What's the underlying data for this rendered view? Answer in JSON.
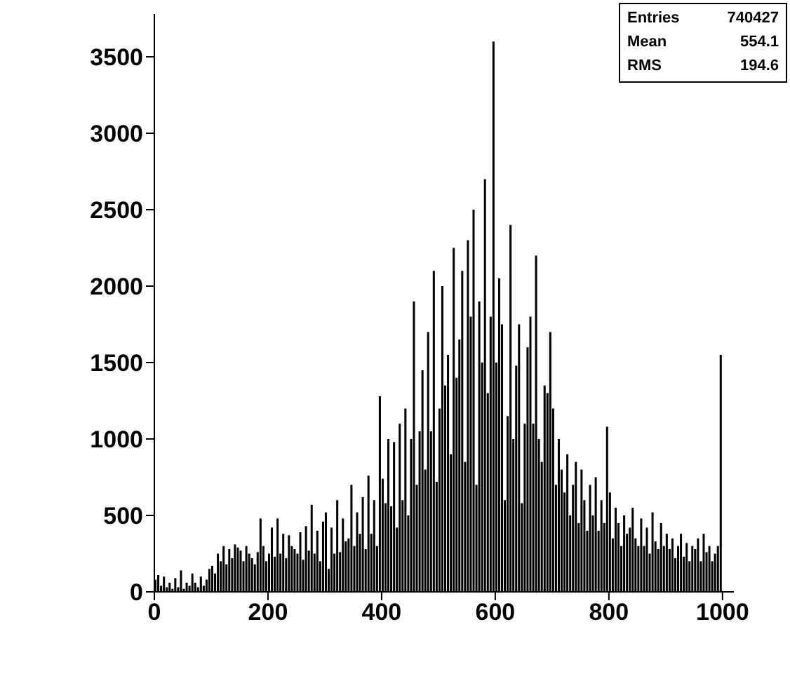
{
  "chart_data": {
    "type": "histogram",
    "color": "#000000",
    "bins": [
      0,
      5,
      10,
      15,
      20,
      25,
      30,
      35,
      40,
      45,
      50,
      55,
      60,
      65,
      70,
      75,
      80,
      85,
      90,
      95,
      100,
      105,
      110,
      115,
      120,
      125,
      130,
      135,
      140,
      145,
      150,
      155,
      160,
      165,
      170,
      175,
      180,
      185,
      190,
      195,
      200,
      205,
      210,
      215,
      220,
      225,
      230,
      235,
      240,
      245,
      250,
      255,
      260,
      265,
      270,
      275,
      280,
      285,
      290,
      295,
      300,
      305,
      310,
      315,
      320,
      325,
      330,
      335,
      340,
      345,
      350,
      355,
      360,
      365,
      370,
      375,
      380,
      385,
      390,
      395,
      400,
      405,
      410,
      415,
      420,
      425,
      430,
      435,
      440,
      445,
      450,
      455,
      460,
      465,
      470,
      475,
      480,
      485,
      490,
      495,
      500,
      505,
      510,
      515,
      520,
      525,
      530,
      535,
      540,
      545,
      550,
      555,
      560,
      565,
      570,
      575,
      580,
      585,
      590,
      595,
      600,
      605,
      610,
      615,
      620,
      625,
      630,
      635,
      640,
      645,
      650,
      655,
      660,
      665,
      670,
      675,
      680,
      685,
      690,
      695,
      700,
      705,
      710,
      715,
      720,
      725,
      730,
      735,
      740,
      745,
      750,
      755,
      760,
      765,
      770,
      775,
      780,
      785,
      790,
      795,
      800,
      805,
      810,
      815,
      820,
      825,
      830,
      835,
      840,
      845,
      850,
      855,
      860,
      865,
      870,
      875,
      880,
      885,
      890,
      895,
      900,
      905,
      910,
      915,
      920,
      925,
      930,
      935,
      940,
      945,
      950,
      955,
      960,
      965,
      970,
      975,
      980,
      985,
      990,
      995,
      1000
    ],
    "values": [
      80,
      110,
      40,
      100,
      30,
      60,
      20,
      90,
      30,
      140,
      20,
      60,
      40,
      120,
      60,
      30,
      100,
      40,
      80,
      150,
      170,
      120,
      250,
      200,
      300,
      180,
      280,
      220,
      310,
      290,
      270,
      200,
      300,
      250,
      220,
      180,
      260,
      480,
      300,
      200,
      250,
      420,
      230,
      480,
      250,
      380,
      220,
      370,
      300,
      280,
      250,
      390,
      210,
      430,
      270,
      570,
      250,
      400,
      200,
      460,
      520,
      150,
      420,
      250,
      600,
      260,
      480,
      330,
      350,
      700,
      300,
      520,
      380,
      620,
      280,
      760,
      380,
      600,
      300,
      1280,
      740,
      580,
      1000,
      560,
      980,
      420,
      1100,
      600,
      1200,
      500,
      1000,
      1900,
      700,
      1050,
      1450,
      800,
      1700,
      1050,
      2100,
      720,
      1200,
      2000,
      1350,
      1550,
      900,
      2250,
      1400,
      1650,
      2100,
      850,
      2300,
      1800,
      2500,
      700,
      1900,
      1500,
      2700,
      1300,
      1800,
      3600,
      1500,
      2050,
      1750,
      600,
      1150,
      2400,
      1000,
      1480,
      1750,
      580,
      1100,
      1600,
      1800,
      1100,
      2200,
      1000,
      850,
      1350,
      1300,
      1700,
      1200,
      700,
      1000,
      800,
      650,
      900,
      500,
      700,
      850,
      450,
      800,
      600,
      400,
      700,
      500,
      750,
      400,
      600,
      450,
      1080,
      650,
      350,
      550,
      450,
      300,
      500,
      380,
      420,
      550,
      350,
      300,
      480,
      300,
      420,
      250,
      520,
      330,
      280,
      450,
      300,
      380,
      280,
      350,
      220,
      300,
      380,
      230,
      320,
      200,
      300,
      280,
      350,
      200,
      380,
      260,
      300,
      200,
      250,
      300,
      1550
    ],
    "xlim": [
      0,
      1020
    ],
    "xticks": [
      0,
      200,
      400,
      600,
      800,
      1000
    ],
    "ylim": [
      0,
      3780
    ],
    "yticks": [
      0,
      500,
      1000,
      1500,
      2000,
      2500,
      3000,
      3500
    ],
    "grid": false,
    "annotations": [
      "Entries 740427",
      "Mean 554.1",
      "RMS 194.6"
    ]
  }
}
